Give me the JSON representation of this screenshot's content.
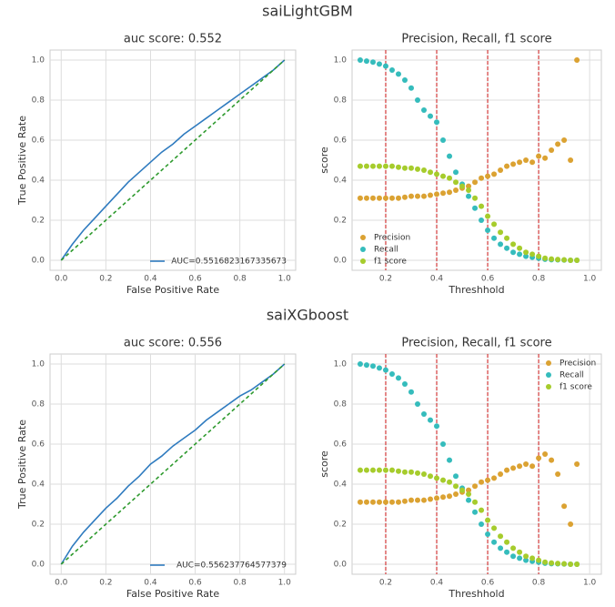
{
  "figure_titles": [
    "saiLightGBM",
    "saiXGboost"
  ],
  "chart_data": [
    {
      "type": "line",
      "title": "auc score: 0.552",
      "xlabel": "False Positive Rate",
      "ylabel": "True Positive Rate",
      "xlim": [
        -0.05,
        1.05
      ],
      "ylim": [
        -0.05,
        1.05
      ],
      "xticks": [
        {
          "value": 0,
          "label": "0.0"
        },
        0.2,
        0.4,
        0.6,
        0.8,
        {
          "value": 1,
          "label": "1.0"
        }
      ],
      "yticks": [
        {
          "value": 0,
          "label": "0.0"
        },
        0.2,
        0.4,
        0.6,
        0.8,
        {
          "value": 1,
          "label": "1.0"
        }
      ],
      "grid": true,
      "legend": "lower right",
      "series": [
        {
          "name": "AUC=0.5516823167335673",
          "color": "#2f7bbf",
          "x": [
            0,
            0.05,
            0.1,
            0.15,
            0.2,
            0.25,
            0.3,
            0.35,
            0.4,
            0.45,
            0.5,
            0.55,
            0.6,
            0.65,
            0.7,
            0.75,
            0.8,
            0.85,
            0.9,
            0.95,
            1
          ],
          "values": [
            0,
            0.08,
            0.15,
            0.21,
            0.27,
            0.33,
            0.39,
            0.44,
            0.49,
            0.54,
            0.58,
            0.63,
            0.67,
            0.71,
            0.75,
            0.79,
            0.83,
            0.87,
            0.91,
            0.95,
            1
          ]
        },
        {
          "color": "#2e9a2e",
          "style": "dashed",
          "x": [
            0,
            1
          ],
          "values": [
            0,
            1
          ]
        }
      ]
    },
    {
      "type": "scatter",
      "title": "Precision, Recall, f1 score",
      "xlabel": "Threshhold",
      "ylabel": "score",
      "xlim": [
        0.068,
        1.046
      ],
      "ylim": [
        -0.05,
        1.05
      ],
      "xticks": [
        0.2,
        0.4,
        0.6,
        0.8,
        {
          "value": 1,
          "label": "1.0"
        }
      ],
      "yticks": [
        {
          "value": 0,
          "label": "0.0"
        },
        0.2,
        0.4,
        0.6,
        0.8,
        {
          "value": 1,
          "label": "1.0"
        }
      ],
      "grid": true,
      "legend": "lower left",
      "vlines": [
        0.2,
        0.4,
        0.6,
        0.8
      ],
      "vline_color": "#d43a3a",
      "x": [
        0.1,
        0.125,
        0.15,
        0.175,
        0.2,
        0.225,
        0.25,
        0.275,
        0.3,
        0.325,
        0.35,
        0.375,
        0.4,
        0.425,
        0.45,
        0.475,
        0.5,
        0.525,
        0.55,
        0.575,
        0.6,
        0.625,
        0.65,
        0.675,
        0.7,
        0.725,
        0.75,
        0.775,
        0.8,
        0.825,
        0.85,
        0.875,
        0.9,
        0.925,
        0.95
      ],
      "series": [
        {
          "name": "Precision",
          "color": "#dba232",
          "values": [
            0.31,
            0.31,
            0.31,
            0.31,
            0.31,
            0.31,
            0.31,
            0.315,
            0.32,
            0.32,
            0.32,
            0.325,
            0.33,
            0.335,
            0.34,
            0.35,
            0.36,
            0.37,
            0.39,
            0.41,
            0.42,
            0.43,
            0.45,
            0.47,
            0.48,
            0.49,
            0.5,
            0.49,
            0.52,
            0.51,
            0.55,
            0.58,
            0.6,
            0.5,
            1.0
          ]
        },
        {
          "name": "Recall",
          "color": "#35bcbc",
          "values": [
            1.0,
            0.995,
            0.99,
            0.98,
            0.97,
            0.95,
            0.93,
            0.9,
            0.86,
            0.8,
            0.75,
            0.72,
            0.69,
            0.6,
            0.52,
            0.44,
            0.38,
            0.32,
            0.26,
            0.2,
            0.15,
            0.11,
            0.08,
            0.06,
            0.04,
            0.03,
            0.02,
            0.015,
            0.01,
            0.005,
            0.003,
            0.002,
            0.001,
            0,
            0
          ]
        },
        {
          "name": "f1 score",
          "color": "#a6cc2c",
          "values": [
            0.47,
            0.47,
            0.47,
            0.47,
            0.47,
            0.47,
            0.465,
            0.46,
            0.46,
            0.455,
            0.45,
            0.44,
            0.43,
            0.42,
            0.41,
            0.39,
            0.37,
            0.35,
            0.31,
            0.27,
            0.22,
            0.18,
            0.14,
            0.11,
            0.08,
            0.06,
            0.04,
            0.03,
            0.02,
            0.01,
            0.006,
            0.004,
            0.002,
            0,
            0
          ]
        }
      ]
    },
    {
      "type": "line",
      "title": "auc score: 0.556",
      "xlabel": "False Positive Rate",
      "ylabel": "True Positive Rate",
      "xlim": [
        -0.05,
        1.05
      ],
      "ylim": [
        -0.05,
        1.05
      ],
      "xticks": [
        {
          "value": 0,
          "label": "0.0"
        },
        0.2,
        0.4,
        0.6,
        0.8,
        {
          "value": 1,
          "label": "1.0"
        }
      ],
      "yticks": [
        {
          "value": 0,
          "label": "0.0"
        },
        0.2,
        0.4,
        0.6,
        0.8,
        {
          "value": 1,
          "label": "1.0"
        }
      ],
      "grid": true,
      "legend": "lower right",
      "series": [
        {
          "name": "AUC=0.556237764577379",
          "color": "#2f7bbf",
          "x": [
            0,
            0.05,
            0.1,
            0.15,
            0.2,
            0.25,
            0.3,
            0.35,
            0.4,
            0.45,
            0.5,
            0.55,
            0.6,
            0.65,
            0.7,
            0.75,
            0.8,
            0.85,
            0.9,
            0.95,
            1
          ],
          "values": [
            0,
            0.09,
            0.16,
            0.22,
            0.28,
            0.33,
            0.39,
            0.44,
            0.5,
            0.54,
            0.59,
            0.63,
            0.67,
            0.72,
            0.76,
            0.8,
            0.84,
            0.87,
            0.91,
            0.95,
            1
          ]
        },
        {
          "color": "#2e9a2e",
          "style": "dashed",
          "x": [
            0,
            1
          ],
          "values": [
            0,
            1
          ]
        }
      ]
    },
    {
      "type": "scatter",
      "title": "Precision, Recall, f1 score",
      "xlabel": "Threshhold",
      "ylabel": "score",
      "xlim": [
        0.068,
        1.046
      ],
      "ylim": [
        -0.05,
        1.05
      ],
      "xticks": [
        0.2,
        0.4,
        0.6,
        0.8,
        {
          "value": 1,
          "label": "1.0"
        }
      ],
      "yticks": [
        {
          "value": 0,
          "label": "0.0"
        },
        0.2,
        0.4,
        0.6,
        0.8,
        {
          "value": 1,
          "label": "1.0"
        }
      ],
      "grid": true,
      "legend": "upper right",
      "vlines": [
        0.2,
        0.4,
        0.6,
        0.8
      ],
      "vline_color": "#d43a3a",
      "x": [
        0.1,
        0.125,
        0.15,
        0.175,
        0.2,
        0.225,
        0.25,
        0.275,
        0.3,
        0.325,
        0.35,
        0.375,
        0.4,
        0.425,
        0.45,
        0.475,
        0.5,
        0.525,
        0.55,
        0.575,
        0.6,
        0.625,
        0.65,
        0.675,
        0.7,
        0.725,
        0.75,
        0.775,
        0.8,
        0.825,
        0.85,
        0.875,
        0.9,
        0.925,
        0.95
      ],
      "series": [
        {
          "name": "Precision",
          "color": "#dba232",
          "values": [
            0.31,
            0.31,
            0.31,
            0.31,
            0.31,
            0.31,
            0.31,
            0.315,
            0.32,
            0.32,
            0.32,
            0.325,
            0.33,
            0.335,
            0.34,
            0.35,
            0.36,
            0.37,
            0.39,
            0.41,
            0.42,
            0.43,
            0.45,
            0.47,
            0.48,
            0.49,
            0.5,
            0.49,
            0.53,
            0.55,
            0.52,
            0.45,
            0.29,
            0.2,
            0.5
          ]
        },
        {
          "name": "Recall",
          "color": "#35bcbc",
          "values": [
            1.0,
            0.995,
            0.99,
            0.98,
            0.97,
            0.95,
            0.93,
            0.9,
            0.86,
            0.8,
            0.75,
            0.72,
            0.69,
            0.6,
            0.52,
            0.44,
            0.38,
            0.32,
            0.26,
            0.2,
            0.15,
            0.11,
            0.08,
            0.06,
            0.04,
            0.03,
            0.02,
            0.015,
            0.01,
            0.005,
            0.003,
            0.002,
            0.001,
            0,
            0
          ]
        },
        {
          "name": "f1 score",
          "color": "#a6cc2c",
          "values": [
            0.47,
            0.47,
            0.47,
            0.47,
            0.47,
            0.47,
            0.465,
            0.46,
            0.46,
            0.455,
            0.45,
            0.44,
            0.43,
            0.42,
            0.41,
            0.39,
            0.37,
            0.35,
            0.31,
            0.27,
            0.22,
            0.18,
            0.14,
            0.11,
            0.08,
            0.06,
            0.04,
            0.03,
            0.02,
            0.01,
            0.006,
            0.004,
            0.002,
            0,
            0
          ]
        }
      ]
    }
  ]
}
